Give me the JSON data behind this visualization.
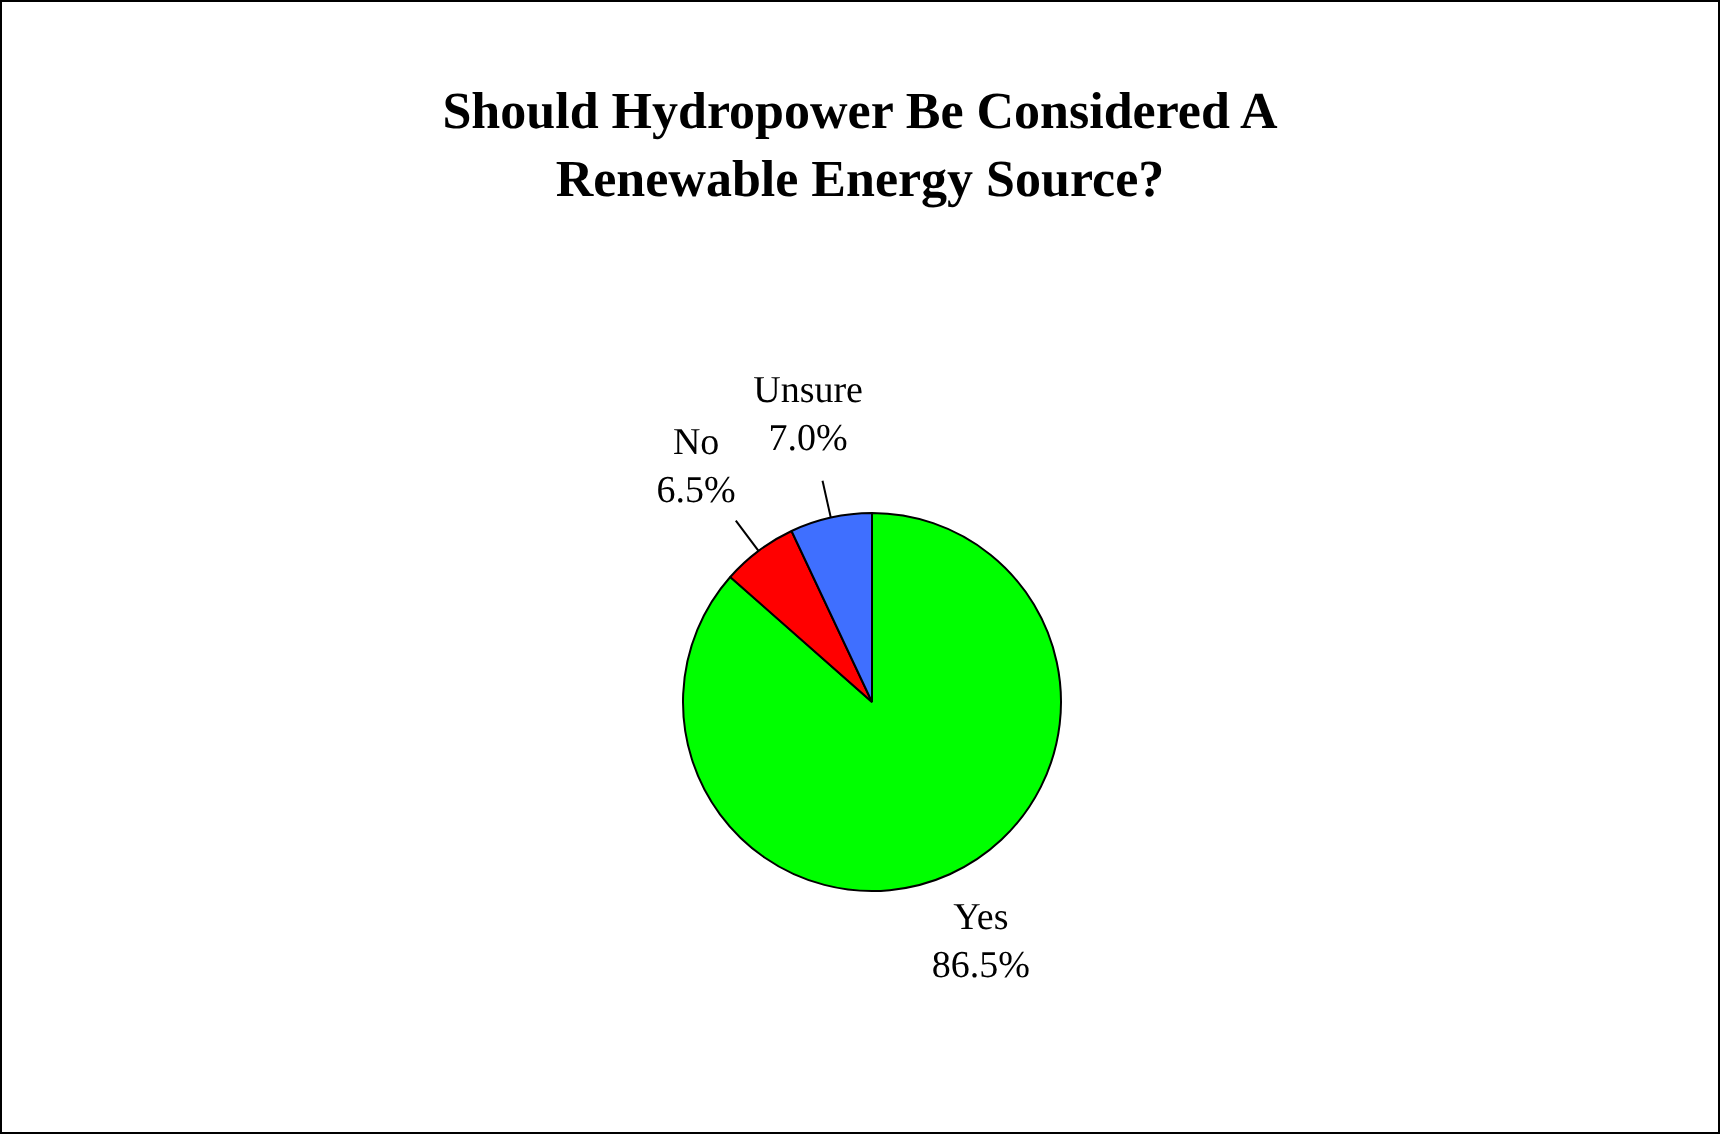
{
  "chart_data": {
    "type": "pie",
    "title": "Should Hydropower Be Considered A Renewable Energy Source?",
    "categories": [
      "Yes",
      "No",
      "Unsure"
    ],
    "values": [
      86.5,
      6.5,
      7.0
    ],
    "colors": [
      "#00ff00",
      "#ff0000",
      "#3f6fff"
    ],
    "value_labels": [
      "86.5%",
      "6.5%",
      "7.0%"
    ],
    "legend": false
  }
}
